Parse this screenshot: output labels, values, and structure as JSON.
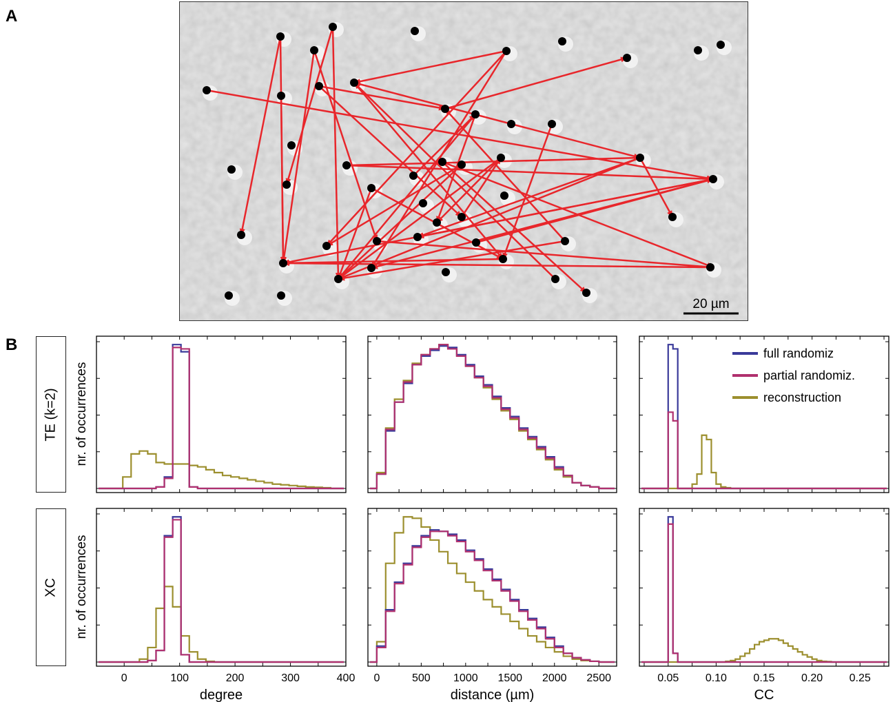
{
  "panel_labels": {
    "a": "A",
    "b": "B"
  },
  "micrograph": {
    "scale_bar_label": "20 µm",
    "colors": {
      "background": "#c8c8c8",
      "cell": "#000000",
      "arrow": "#e8262b"
    }
  },
  "rows": [
    {
      "label": "TE (k=2)",
      "ylabel": "nr. of occurrences"
    },
    {
      "label": "XC",
      "ylabel": "nr. of occurrences"
    }
  ],
  "legend": {
    "placement": "top-right",
    "entries": [
      {
        "label": "full randomiz",
        "color": "#3a3a9a"
      },
      {
        "label": "partial randomiz.",
        "color": "#b0306e"
      },
      {
        "label": "reconstruction",
        "color": "#9c8f2e"
      }
    ]
  },
  "chart_data": [
    {
      "type": "step",
      "row": "TE (k=2)",
      "xlabel": "",
      "ylabel": "nr. of occurrences",
      "xlim": [
        -50,
        400
      ],
      "ylim": [
        0,
        1.02
      ],
      "x": [
        -25,
        -10,
        5,
        20,
        35,
        50,
        65,
        80,
        95,
        110,
        125,
        140,
        155,
        170,
        185,
        200,
        215,
        230,
        245,
        260,
        275,
        290,
        305,
        320,
        335,
        350,
        365,
        380
      ],
      "series": [
        {
          "name": "full randomiz",
          "values": [
            0,
            0,
            0,
            0,
            0,
            0,
            0.01,
            0.08,
            1.0,
            0.95,
            0.01,
            0,
            0,
            0,
            0,
            0,
            0,
            0,
            0,
            0,
            0,
            0,
            0,
            0,
            0,
            0,
            0,
            0
          ]
        },
        {
          "name": "partial randomiz.",
          "values": [
            0,
            0,
            0,
            0,
            0,
            0,
            0.01,
            0.07,
            0.98,
            0.97,
            0.01,
            0,
            0,
            0,
            0,
            0,
            0,
            0,
            0,
            0,
            0,
            0,
            0,
            0,
            0,
            0,
            0,
            0
          ]
        },
        {
          "name": "reconstruction",
          "values": [
            0,
            0,
            0.08,
            0.24,
            0.26,
            0.24,
            0.18,
            0.17,
            0.17,
            0.17,
            0.16,
            0.15,
            0.13,
            0.11,
            0.09,
            0.08,
            0.07,
            0.06,
            0.05,
            0.04,
            0.03,
            0.025,
            0.02,
            0.015,
            0.01,
            0.008,
            0.005,
            0
          ]
        }
      ]
    },
    {
      "type": "step",
      "row": "TE (k=2)",
      "xlabel": "",
      "ylabel": "",
      "xlim": [
        -100,
        2700
      ],
      "ylim": [
        0,
        1.02
      ],
      "x": [
        50,
        150,
        250,
        350,
        450,
        550,
        650,
        750,
        850,
        950,
        1050,
        1150,
        1250,
        1350,
        1450,
        1550,
        1650,
        1750,
        1850,
        1950,
        2050,
        2150,
        2250,
        2350,
        2450,
        2550
      ],
      "series": [
        {
          "name": "full randomiz",
          "values": [
            0.1,
            0.4,
            0.6,
            0.73,
            0.86,
            0.92,
            0.96,
            0.99,
            0.98,
            0.93,
            0.86,
            0.78,
            0.72,
            0.64,
            0.56,
            0.5,
            0.42,
            0.36,
            0.29,
            0.22,
            0.15,
            0.09,
            0.04,
            0.02,
            0.01,
            0
          ]
        },
        {
          "name": "partial randomiz.",
          "values": [
            0.1,
            0.41,
            0.6,
            0.74,
            0.86,
            0.93,
            0.97,
            1.0,
            0.97,
            0.92,
            0.85,
            0.77,
            0.71,
            0.63,
            0.55,
            0.49,
            0.41,
            0.35,
            0.28,
            0.21,
            0.14,
            0.09,
            0.04,
            0.02,
            0.01,
            0
          ]
        },
        {
          "name": "reconstruction",
          "values": [
            0.11,
            0.42,
            0.62,
            0.75,
            0.87,
            0.93,
            0.97,
            1.0,
            0.97,
            0.92,
            0.85,
            0.77,
            0.7,
            0.62,
            0.54,
            0.48,
            0.4,
            0.34,
            0.27,
            0.2,
            0.13,
            0.08,
            0.04,
            0.02,
            0.01,
            0
          ]
        }
      ]
    },
    {
      "type": "step",
      "row": "TE (k=2)",
      "xlabel": "",
      "ylabel": "",
      "xlim": [
        0.02,
        0.28
      ],
      "ylim": [
        0,
        1.02
      ],
      "x": [
        0.0525,
        0.0575,
        0.0625,
        0.0675,
        0.0725,
        0.0775,
        0.0825,
        0.0875,
        0.0925,
        0.0975,
        0.1025,
        0.1075,
        0.1125,
        0.1175
      ],
      "series": [
        {
          "name": "full randomiz",
          "values": [
            1.0,
            0.97,
            0,
            0,
            0,
            0,
            0,
            0,
            0,
            0,
            0,
            0,
            0,
            0
          ]
        },
        {
          "name": "partial randomiz.",
          "values": [
            0.53,
            0.47,
            0,
            0,
            0,
            0,
            0,
            0,
            0,
            0,
            0,
            0,
            0,
            0
          ]
        },
        {
          "name": "reconstruction",
          "values": [
            0,
            0,
            0,
            0,
            0,
            0.03,
            0.1,
            0.37,
            0.34,
            0.11,
            0.03,
            0.01,
            0.005,
            0
          ]
        }
      ]
    },
    {
      "type": "step",
      "row": "XC",
      "xlabel": "degree",
      "ylabel": "nr. of occurrences",
      "xlim": [
        -50,
        400
      ],
      "ylim": [
        0,
        1.02
      ],
      "x": [
        -25,
        -10,
        5,
        20,
        35,
        50,
        65,
        80,
        95,
        110,
        125,
        140,
        155,
        170,
        185,
        200,
        215,
        230,
        245,
        260,
        275,
        290,
        305,
        320,
        335,
        350,
        365,
        380
      ],
      "xticks": [
        0,
        100,
        200,
        300,
        400
      ],
      "series": [
        {
          "name": "full randomiz",
          "values": [
            0,
            0,
            0,
            0,
            0,
            0.01,
            0.08,
            0.87,
            1.0,
            0.05,
            0,
            0,
            0,
            0,
            0,
            0,
            0,
            0,
            0,
            0,
            0,
            0,
            0,
            0,
            0,
            0,
            0,
            0
          ]
        },
        {
          "name": "partial randomiz.",
          "values": [
            0,
            0,
            0,
            0,
            0,
            0.01,
            0.08,
            0.86,
            0.98,
            0.05,
            0,
            0,
            0,
            0,
            0,
            0,
            0,
            0,
            0,
            0,
            0,
            0,
            0,
            0,
            0,
            0,
            0,
            0
          ]
        },
        {
          "name": "reconstruction",
          "values": [
            0,
            0,
            0,
            0,
            0.02,
            0.1,
            0.37,
            0.52,
            0.38,
            0.18,
            0.07,
            0.02,
            0.005,
            0,
            0,
            0,
            0,
            0,
            0,
            0,
            0,
            0,
            0,
            0,
            0,
            0,
            0,
            0
          ]
        }
      ]
    },
    {
      "type": "step",
      "row": "XC",
      "xlabel": "distance (µm)",
      "ylabel": "",
      "xlim": [
        -100,
        2700
      ],
      "ylim": [
        0,
        1.02
      ],
      "x": [
        50,
        150,
        250,
        350,
        450,
        550,
        650,
        750,
        850,
        950,
        1050,
        1150,
        1250,
        1350,
        1450,
        1550,
        1650,
        1750,
        1850,
        1950,
        2050,
        2150,
        2250,
        2350,
        2450,
        2550
      ],
      "xticks": [
        0,
        500,
        1000,
        1500,
        2000,
        2500
      ],
      "series": [
        {
          "name": "full randomiz",
          "values": [
            0.11,
            0.36,
            0.55,
            0.68,
            0.8,
            0.87,
            0.91,
            0.9,
            0.88,
            0.84,
            0.77,
            0.71,
            0.64,
            0.57,
            0.5,
            0.43,
            0.36,
            0.3,
            0.24,
            0.17,
            0.11,
            0.06,
            0.03,
            0.015,
            0.005,
            0
          ]
        },
        {
          "name": "partial randomiz.",
          "values": [
            0.1,
            0.35,
            0.54,
            0.67,
            0.79,
            0.86,
            0.9,
            0.9,
            0.87,
            0.83,
            0.76,
            0.7,
            0.63,
            0.56,
            0.49,
            0.42,
            0.35,
            0.29,
            0.23,
            0.16,
            0.1,
            0.06,
            0.03,
            0.015,
            0.005,
            0
          ]
        },
        {
          "name": "reconstruction",
          "values": [
            0.14,
            0.68,
            0.89,
            1.0,
            0.99,
            0.93,
            0.84,
            0.76,
            0.68,
            0.61,
            0.55,
            0.49,
            0.43,
            0.38,
            0.33,
            0.28,
            0.23,
            0.18,
            0.14,
            0.1,
            0.07,
            0.04,
            0.02,
            0.01,
            0.005,
            0
          ]
        }
      ]
    },
    {
      "type": "step",
      "row": "XC",
      "xlabel": "CC",
      "ylabel": "",
      "xlim": [
        0.02,
        0.28
      ],
      "ylim": [
        0,
        1.02
      ],
      "x": [
        0.0525,
        0.0575,
        0.0625,
        0.0675,
        0.0725,
        0.0775,
        0.0825,
        0.0875,
        0.0925,
        0.0975,
        0.1025,
        0.1075,
        0.1125,
        0.1175,
        0.1225,
        0.1275,
        0.1325,
        0.1375,
        0.1425,
        0.1475,
        0.1525,
        0.1575,
        0.1625,
        0.1675,
        0.1725,
        0.1775,
        0.1825,
        0.1875,
        0.1925,
        0.1975,
        0.2025,
        0.2075,
        0.2125,
        0.2175,
        0.2225
      ],
      "xticks": [
        0.05,
        0.1,
        0.15,
        0.2,
        0.25
      ],
      "xticklabels": [
        "0.05",
        "0.10",
        "0.15",
        "0.20",
        "0.25"
      ],
      "series": [
        {
          "name": "full randomiz",
          "values": [
            1.0,
            0.06,
            0,
            0,
            0,
            0,
            0,
            0,
            0,
            0,
            0,
            0,
            0,
            0,
            0,
            0,
            0,
            0,
            0,
            0,
            0,
            0,
            0,
            0,
            0,
            0,
            0,
            0,
            0,
            0,
            0,
            0,
            0,
            0,
            0
          ]
        },
        {
          "name": "partial randomiz.",
          "values": [
            0.95,
            0.06,
            0,
            0,
            0,
            0,
            0,
            0,
            0,
            0,
            0,
            0,
            0,
            0,
            0,
            0,
            0,
            0,
            0,
            0,
            0,
            0,
            0,
            0,
            0,
            0,
            0,
            0,
            0,
            0,
            0,
            0,
            0,
            0,
            0
          ]
        },
        {
          "name": "reconstruction",
          "values": [
            0,
            0,
            0,
            0,
            0,
            0,
            0,
            0,
            0,
            0,
            0,
            0,
            0.005,
            0.01,
            0.02,
            0.04,
            0.06,
            0.09,
            0.12,
            0.14,
            0.15,
            0.16,
            0.16,
            0.15,
            0.13,
            0.11,
            0.09,
            0.07,
            0.05,
            0.035,
            0.02,
            0.01,
            0.005,
            0.003,
            0
          ]
        }
      ]
    }
  ]
}
